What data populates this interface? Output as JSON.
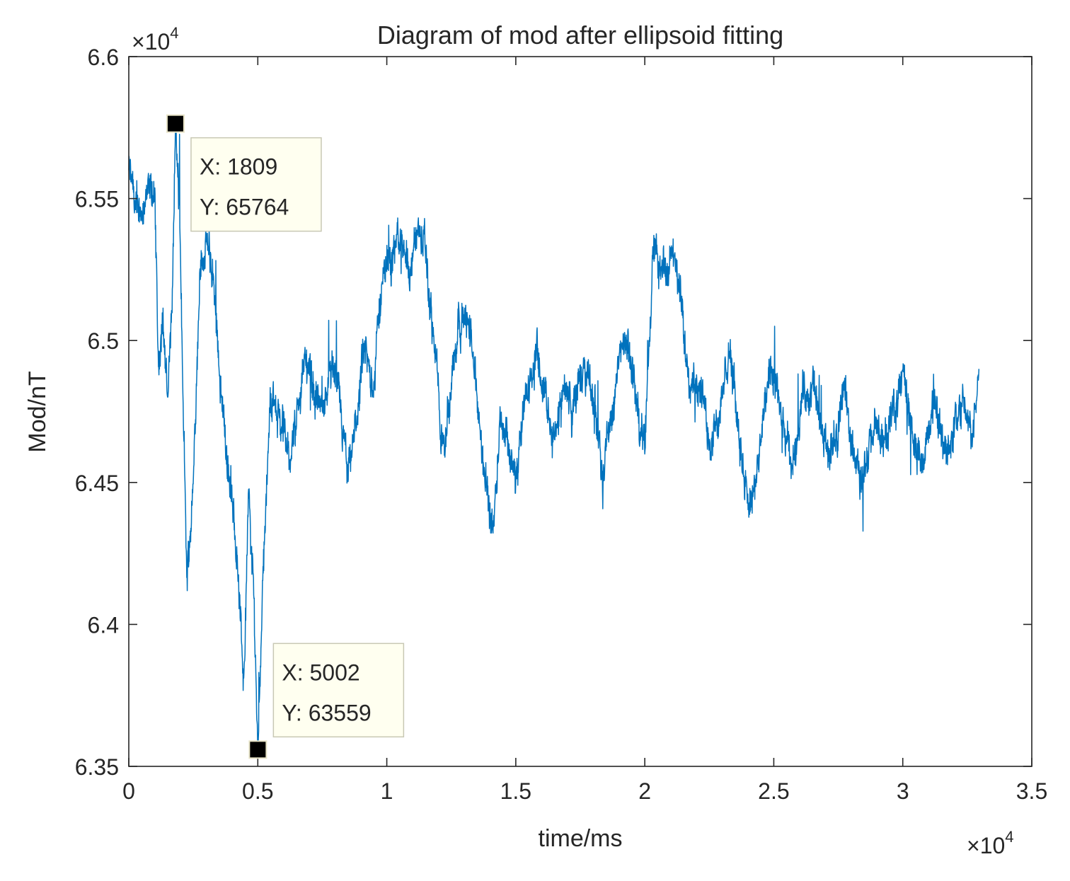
{
  "chart_data": {
    "type": "line",
    "title": "Diagram of mod after ellipsoid fitting",
    "xlabel": "time/ms",
    "ylabel": "Mod/nT",
    "xlim": [
      0,
      35000
    ],
    "ylim": [
      63500,
      66000
    ],
    "x_ticks": [
      0,
      5000,
      10000,
      15000,
      20000,
      25000,
      30000,
      35000
    ],
    "x_tick_labels": [
      "0",
      "0.5",
      "1",
      "1.5",
      "2",
      "2.5",
      "3",
      "3.5"
    ],
    "y_ticks": [
      63500,
      64000,
      64500,
      65000,
      65500,
      66000
    ],
    "y_tick_labels": [
      "6.35",
      "6.4",
      "6.45",
      "6.5",
      "6.55",
      "6.6"
    ],
    "x_exponent": {
      "prefix": "×10",
      "power": "4"
    },
    "y_exponent": {
      "prefix": "×10",
      "power": "4"
    },
    "line_color": "#0072BD",
    "series": [
      {
        "name": "mod",
        "x_range": [
          0,
          32950
        ],
        "sample_count": 3300,
        "note": "noisy magnetometer modulus trace, envelope approximated by anchors",
        "anchors": [
          [
            0,
            65600
          ],
          [
            300,
            65450
          ],
          [
            700,
            65500
          ],
          [
            1000,
            65520
          ],
          [
            1150,
            64900
          ],
          [
            1300,
            65100
          ],
          [
            1500,
            64800
          ],
          [
            1700,
            65200
          ],
          [
            1809,
            65764
          ],
          [
            1950,
            65500
          ],
          [
            2100,
            64800
          ],
          [
            2250,
            64150
          ],
          [
            2500,
            64500
          ],
          [
            2750,
            65250
          ],
          [
            3000,
            65350
          ],
          [
            3300,
            65200
          ],
          [
            3600,
            64800
          ],
          [
            3900,
            64500
          ],
          [
            4200,
            64250
          ],
          [
            4450,
            63800
          ],
          [
            4650,
            64450
          ],
          [
            4850,
            64100
          ],
          [
            5002,
            63559
          ],
          [
            5200,
            64200
          ],
          [
            5500,
            64800
          ],
          [
            5800,
            64750
          ],
          [
            6200,
            64600
          ],
          [
            6500,
            64700
          ],
          [
            6800,
            64950
          ],
          [
            7100,
            64850
          ],
          [
            7500,
            64750
          ],
          [
            7900,
            64900
          ],
          [
            8200,
            64750
          ],
          [
            8500,
            64500
          ],
          [
            8800,
            64700
          ],
          [
            9100,
            64950
          ],
          [
            9500,
            64850
          ],
          [
            9800,
            65200
          ],
          [
            10100,
            65300
          ],
          [
            10600,
            65350
          ],
          [
            10900,
            65250
          ],
          [
            11200,
            65400
          ],
          [
            11500,
            65300
          ],
          [
            11700,
            65100
          ],
          [
            11950,
            64900
          ],
          [
            12100,
            64600
          ],
          [
            12500,
            64850
          ],
          [
            12800,
            65100
          ],
          [
            13200,
            65050
          ],
          [
            13500,
            64800
          ],
          [
            13800,
            64500
          ],
          [
            14100,
            64350
          ],
          [
            14400,
            64750
          ],
          [
            14700,
            64650
          ],
          [
            15000,
            64500
          ],
          [
            15400,
            64800
          ],
          [
            15800,
            64950
          ],
          [
            16200,
            64750
          ],
          [
            16500,
            64650
          ],
          [
            16900,
            64850
          ],
          [
            17200,
            64750
          ],
          [
            17600,
            64900
          ],
          [
            18000,
            64800
          ],
          [
            18400,
            64550
          ],
          [
            18800,
            64800
          ],
          [
            19200,
            65000
          ],
          [
            19600,
            64850
          ],
          [
            20000,
            64600
          ],
          [
            20300,
            65300
          ],
          [
            20700,
            65250
          ],
          [
            21000,
            65300
          ],
          [
            21300,
            65200
          ],
          [
            21700,
            64900
          ],
          [
            22100,
            64850
          ],
          [
            22500,
            64650
          ],
          [
            22900,
            64750
          ],
          [
            23300,
            64950
          ],
          [
            23700,
            64650
          ],
          [
            24100,
            64400
          ],
          [
            24500,
            64650
          ],
          [
            24900,
            64900
          ],
          [
            25300,
            64700
          ],
          [
            25700,
            64550
          ],
          [
            26100,
            64800
          ],
          [
            26500,
            64850
          ],
          [
            26900,
            64650
          ],
          [
            27300,
            64600
          ],
          [
            27700,
            64850
          ],
          [
            28100,
            64600
          ],
          [
            28500,
            64500
          ],
          [
            28900,
            64700
          ],
          [
            29300,
            64650
          ],
          [
            29700,
            64750
          ],
          [
            30000,
            64900
          ],
          [
            30400,
            64650
          ],
          [
            30800,
            64550
          ],
          [
            31200,
            64800
          ],
          [
            31600,
            64600
          ],
          [
            32000,
            64700
          ],
          [
            32400,
            64800
          ],
          [
            32700,
            64650
          ],
          [
            32950,
            64900
          ]
        ]
      }
    ],
    "annotations": [
      {
        "x": 1809,
        "y": 65764,
        "label_x": "X: 1809",
        "label_y": "Y: 65764",
        "box_side": "lower-right"
      },
      {
        "x": 5002,
        "y": 63559,
        "label_x": "X: 5002",
        "label_y": "Y: 63559",
        "box_side": "upper-right"
      }
    ]
  }
}
